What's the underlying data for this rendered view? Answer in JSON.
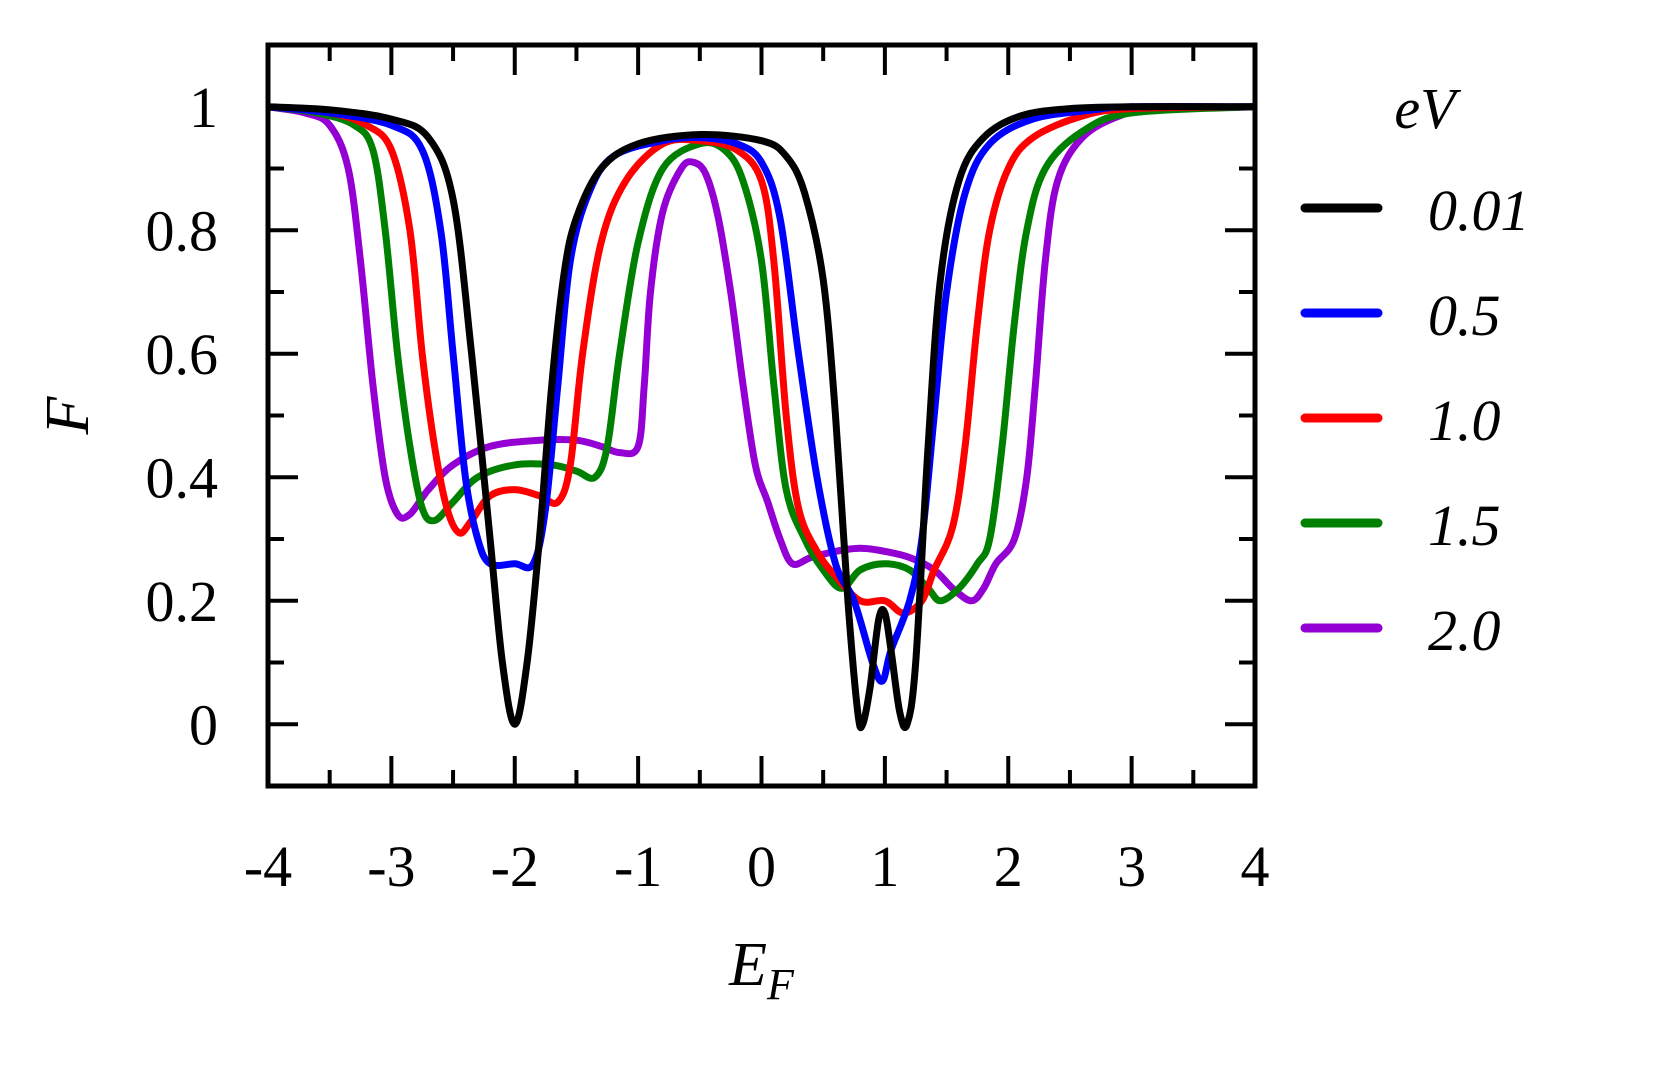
{
  "chart_data": {
    "type": "line",
    "title": "",
    "xlabel": "E",
    "xlabel_sub": "F",
    "ylabel": "F",
    "xlim": [
      -4,
      4
    ],
    "ylim": [
      -0.1,
      1.1
    ],
    "x_ticks": [
      -4,
      -3,
      -2,
      -1,
      0,
      1,
      2,
      3,
      4
    ],
    "x_tick_labels": [
      "-4",
      "-3",
      "-2",
      "-1",
      "0",
      "1",
      "2",
      "3",
      "4"
    ],
    "y_ticks": [
      0,
      0.2,
      0.4,
      0.6,
      0.8,
      1
    ],
    "y_tick_labels": [
      "0",
      "0.2",
      "0.4",
      "0.6",
      "0.8",
      "1"
    ],
    "grid": false,
    "legend": {
      "title": "eV",
      "placement": "right"
    },
    "series": [
      {
        "name": "0.01",
        "color": "#000000",
        "points": [
          [
            -4,
            1.0
          ],
          [
            -3.5,
            0.995
          ],
          [
            -3,
            0.98
          ],
          [
            -2.7,
            0.95
          ],
          [
            -2.5,
            0.85
          ],
          [
            -2.35,
            0.6
          ],
          [
            -2.2,
            0.3
          ],
          [
            -2.1,
            0.1
          ],
          [
            -2.0,
            0.0
          ],
          [
            -1.9,
            0.1
          ],
          [
            -1.8,
            0.3
          ],
          [
            -1.7,
            0.55
          ],
          [
            -1.6,
            0.73
          ],
          [
            -1.5,
            0.82
          ],
          [
            -1.3,
            0.9
          ],
          [
            -1.0,
            0.94
          ],
          [
            -0.5,
            0.955
          ],
          [
            0,
            0.945
          ],
          [
            0.2,
            0.92
          ],
          [
            0.35,
            0.86
          ],
          [
            0.5,
            0.72
          ],
          [
            0.6,
            0.5
          ],
          [
            0.7,
            0.2
          ],
          [
            0.78,
            0.02
          ],
          [
            0.82,
            0.0
          ],
          [
            0.88,
            0.06
          ],
          [
            0.95,
            0.17
          ],
          [
            1.0,
            0.18
          ],
          [
            1.05,
            0.12
          ],
          [
            1.12,
            0.02
          ],
          [
            1.18,
            0.0
          ],
          [
            1.25,
            0.1
          ],
          [
            1.35,
            0.45
          ],
          [
            1.45,
            0.72
          ],
          [
            1.6,
            0.88
          ],
          [
            1.8,
            0.95
          ],
          [
            2.1,
            0.985
          ],
          [
            2.5,
            0.997
          ],
          [
            3,
            1.0
          ],
          [
            4,
            1.0
          ]
        ]
      },
      {
        "name": "0.5",
        "color": "#0000ff",
        "points": [
          [
            -4,
            1.0
          ],
          [
            -3.5,
            0.99
          ],
          [
            -3,
            0.97
          ],
          [
            -2.75,
            0.93
          ],
          [
            -2.6,
            0.8
          ],
          [
            -2.5,
            0.6
          ],
          [
            -2.4,
            0.4
          ],
          [
            -2.3,
            0.3
          ],
          [
            -2.2,
            0.26
          ],
          [
            -2.0,
            0.26
          ],
          [
            -1.85,
            0.26
          ],
          [
            -1.75,
            0.35
          ],
          [
            -1.65,
            0.55
          ],
          [
            -1.55,
            0.75
          ],
          [
            -1.4,
            0.86
          ],
          [
            -1.2,
            0.92
          ],
          [
            -0.8,
            0.945
          ],
          [
            -0.5,
            0.95
          ],
          [
            -0.2,
            0.94
          ],
          [
            0,
            0.91
          ],
          [
            0.15,
            0.82
          ],
          [
            0.3,
            0.6
          ],
          [
            0.45,
            0.4
          ],
          [
            0.6,
            0.26
          ],
          [
            0.75,
            0.2
          ],
          [
            0.9,
            0.1
          ],
          [
            0.98,
            0.07
          ],
          [
            1.05,
            0.12
          ],
          [
            1.2,
            0.2
          ],
          [
            1.3,
            0.3
          ],
          [
            1.4,
            0.5
          ],
          [
            1.5,
            0.7
          ],
          [
            1.65,
            0.86
          ],
          [
            1.85,
            0.94
          ],
          [
            2.2,
            0.98
          ],
          [
            2.7,
            0.995
          ],
          [
            3,
            1.0
          ],
          [
            4,
            1.0
          ]
        ]
      },
      {
        "name": "1.0",
        "color": "#ff0000",
        "points": [
          [
            -4,
            1.0
          ],
          [
            -3.5,
            0.99
          ],
          [
            -3.2,
            0.97
          ],
          [
            -3.0,
            0.93
          ],
          [
            -2.85,
            0.8
          ],
          [
            -2.75,
            0.6
          ],
          [
            -2.65,
            0.45
          ],
          [
            -2.55,
            0.35
          ],
          [
            -2.45,
            0.31
          ],
          [
            -2.35,
            0.33
          ],
          [
            -2.2,
            0.37
          ],
          [
            -2.0,
            0.38
          ],
          [
            -1.8,
            0.37
          ],
          [
            -1.65,
            0.36
          ],
          [
            -1.55,
            0.42
          ],
          [
            -1.45,
            0.6
          ],
          [
            -1.3,
            0.78
          ],
          [
            -1.1,
            0.88
          ],
          [
            -0.8,
            0.94
          ],
          [
            -0.5,
            0.945
          ],
          [
            -0.2,
            0.93
          ],
          [
            0,
            0.88
          ],
          [
            0.1,
            0.75
          ],
          [
            0.2,
            0.5
          ],
          [
            0.3,
            0.35
          ],
          [
            0.45,
            0.28
          ],
          [
            0.6,
            0.24
          ],
          [
            0.8,
            0.2
          ],
          [
            1.0,
            0.2
          ],
          [
            1.15,
            0.18
          ],
          [
            1.3,
            0.2
          ],
          [
            1.4,
            0.25
          ],
          [
            1.55,
            0.32
          ],
          [
            1.65,
            0.45
          ],
          [
            1.75,
            0.65
          ],
          [
            1.85,
            0.8
          ],
          [
            2.0,
            0.9
          ],
          [
            2.2,
            0.95
          ],
          [
            2.6,
            0.985
          ],
          [
            3,
            0.997
          ],
          [
            4,
            1.0
          ]
        ]
      },
      {
        "name": "1.5",
        "color": "#008000",
        "points": [
          [
            -4,
            1.0
          ],
          [
            -3.6,
            0.99
          ],
          [
            -3.3,
            0.97
          ],
          [
            -3.15,
            0.93
          ],
          [
            -3.05,
            0.8
          ],
          [
            -2.95,
            0.6
          ],
          [
            -2.85,
            0.45
          ],
          [
            -2.75,
            0.35
          ],
          [
            -2.65,
            0.33
          ],
          [
            -2.5,
            0.36
          ],
          [
            -2.3,
            0.4
          ],
          [
            -2.0,
            0.42
          ],
          [
            -1.7,
            0.42
          ],
          [
            -1.5,
            0.41
          ],
          [
            -1.35,
            0.4
          ],
          [
            -1.25,
            0.45
          ],
          [
            -1.15,
            0.6
          ],
          [
            -1.0,
            0.78
          ],
          [
            -0.8,
            0.9
          ],
          [
            -0.5,
            0.94
          ],
          [
            -0.3,
            0.93
          ],
          [
            -0.15,
            0.88
          ],
          [
            0,
            0.75
          ],
          [
            0.1,
            0.55
          ],
          [
            0.2,
            0.38
          ],
          [
            0.35,
            0.3
          ],
          [
            0.5,
            0.25
          ],
          [
            0.65,
            0.22
          ],
          [
            0.8,
            0.25
          ],
          [
            1.0,
            0.26
          ],
          [
            1.2,
            0.25
          ],
          [
            1.35,
            0.22
          ],
          [
            1.45,
            0.2
          ],
          [
            1.6,
            0.22
          ],
          [
            1.75,
            0.26
          ],
          [
            1.85,
            0.3
          ],
          [
            1.95,
            0.45
          ],
          [
            2.05,
            0.65
          ],
          [
            2.15,
            0.8
          ],
          [
            2.3,
            0.9
          ],
          [
            2.6,
            0.96
          ],
          [
            3,
            0.99
          ],
          [
            4,
            1.0
          ]
        ]
      },
      {
        "name": "2.0",
        "color": "#9400d3",
        "points": [
          [
            -4,
            1.0
          ],
          [
            -3.7,
            0.99
          ],
          [
            -3.5,
            0.97
          ],
          [
            -3.35,
            0.9
          ],
          [
            -3.25,
            0.75
          ],
          [
            -3.15,
            0.55
          ],
          [
            -3.05,
            0.4
          ],
          [
            -2.95,
            0.34
          ],
          [
            -2.85,
            0.34
          ],
          [
            -2.7,
            0.38
          ],
          [
            -2.5,
            0.42
          ],
          [
            -2.2,
            0.45
          ],
          [
            -1.8,
            0.46
          ],
          [
            -1.5,
            0.46
          ],
          [
            -1.3,
            0.45
          ],
          [
            -1.15,
            0.44
          ],
          [
            -1.0,
            0.45
          ],
          [
            -0.95,
            0.55
          ],
          [
            -0.9,
            0.7
          ],
          [
            -0.8,
            0.83
          ],
          [
            -0.65,
            0.9
          ],
          [
            -0.55,
            0.91
          ],
          [
            -0.45,
            0.89
          ],
          [
            -0.35,
            0.82
          ],
          [
            -0.25,
            0.7
          ],
          [
            -0.15,
            0.55
          ],
          [
            -0.05,
            0.42
          ],
          [
            0.05,
            0.36
          ],
          [
            0.15,
            0.3
          ],
          [
            0.25,
            0.26
          ],
          [
            0.4,
            0.27
          ],
          [
            0.6,
            0.28
          ],
          [
            0.8,
            0.285
          ],
          [
            1.0,
            0.28
          ],
          [
            1.2,
            0.27
          ],
          [
            1.4,
            0.25
          ],
          [
            1.55,
            0.22
          ],
          [
            1.7,
            0.2
          ],
          [
            1.8,
            0.22
          ],
          [
            1.9,
            0.26
          ],
          [
            2.05,
            0.3
          ],
          [
            2.15,
            0.4
          ],
          [
            2.22,
            0.55
          ],
          [
            2.3,
            0.75
          ],
          [
            2.4,
            0.88
          ],
          [
            2.6,
            0.95
          ],
          [
            2.9,
            0.985
          ],
          [
            3.2,
            0.997
          ],
          [
            4,
            1.0
          ]
        ]
      }
    ]
  }
}
